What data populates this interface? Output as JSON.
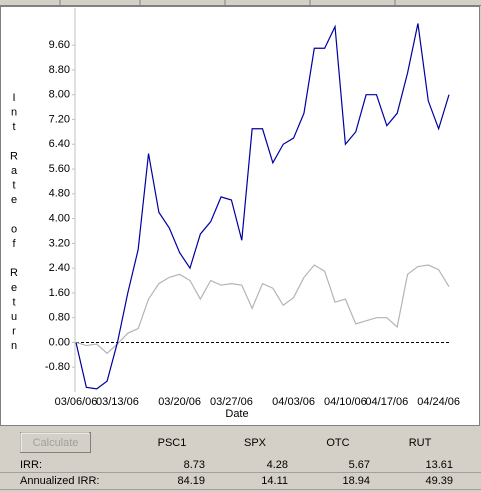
{
  "chart_data": {
    "type": "line",
    "y_label": "Int Rate of Return",
    "x_label": "Date",
    "categories": [
      "03/06/06",
      null,
      null,
      null,
      "03/13/06",
      null,
      null,
      null,
      null,
      null,
      "03/20/06",
      null,
      null,
      null,
      null,
      "03/27/06",
      null,
      null,
      null,
      null,
      null,
      "04/03/06",
      null,
      null,
      null,
      null,
      "04/10/06",
      null,
      null,
      null,
      "04/17/06",
      null,
      null,
      null,
      null,
      "04/24/06",
      null
    ],
    "series": [
      {
        "color": "#0000a0",
        "values": [
          0,
          -1.45,
          -1.5,
          -1.25,
          0,
          1.6,
          3.0,
          6.1,
          4.2,
          3.7,
          2.9,
          2.4,
          3.5,
          3.9,
          4.7,
          4.6,
          3.3,
          6.9,
          6.9,
          5.8,
          6.4,
          6.6,
          7.4,
          9.5,
          9.5,
          10.2,
          6.4,
          6.8,
          8.0,
          8.0,
          7.0,
          7.4,
          8.7,
          10.3,
          7.8,
          6.9,
          8.0
        ]
      },
      {
        "color": "#b4b4b4",
        "values": [
          0,
          -0.1,
          -0.05,
          -0.35,
          -0.05,
          0.3,
          0.45,
          1.4,
          1.9,
          2.1,
          2.2,
          2.0,
          1.4,
          2.0,
          1.85,
          1.9,
          1.85,
          1.1,
          1.9,
          1.75,
          1.2,
          1.45,
          2.1,
          2.5,
          2.3,
          1.3,
          1.4,
          0.6,
          0.7,
          0.8,
          0.8,
          0.5,
          2.2,
          2.45,
          2.5,
          2.35,
          1.8
        ]
      }
    ],
    "reference_line": 0,
    "ylim": [
      -1.6,
      10.8
    ],
    "yticks": [
      {
        "value": -0.8,
        "label": "-0.80"
      },
      {
        "value": 0,
        "label": "0.00"
      },
      {
        "value": 0.8,
        "label": "0.80"
      },
      {
        "value": 1.6,
        "label": "1.60"
      },
      {
        "value": 2.4,
        "label": "2.40"
      },
      {
        "value": 3.2,
        "label": "3.20"
      },
      {
        "value": 4.0,
        "label": "4.00"
      },
      {
        "value": 4.8,
        "label": "4.80"
      },
      {
        "value": 5.6,
        "label": "5.60"
      },
      {
        "value": 6.4,
        "label": "6.40"
      },
      {
        "value": 7.2,
        "label": "7.20"
      },
      {
        "value": 8.0,
        "label": "8.00"
      },
      {
        "value": 8.8,
        "label": "8.80"
      },
      {
        "value": 9.6,
        "label": "9.60"
      }
    ]
  },
  "panel": {
    "button": "Calculate",
    "columns": [
      "PSC1",
      "SPX",
      "OTC",
      "RUT"
    ],
    "rows": [
      {
        "label": "IRR:",
        "values": [
          8.73,
          4.28,
          5.67,
          13.61
        ]
      },
      {
        "label": "Annualized IRR:",
        "values": [
          84.19,
          14.11,
          18.94,
          49.39
        ]
      }
    ]
  }
}
